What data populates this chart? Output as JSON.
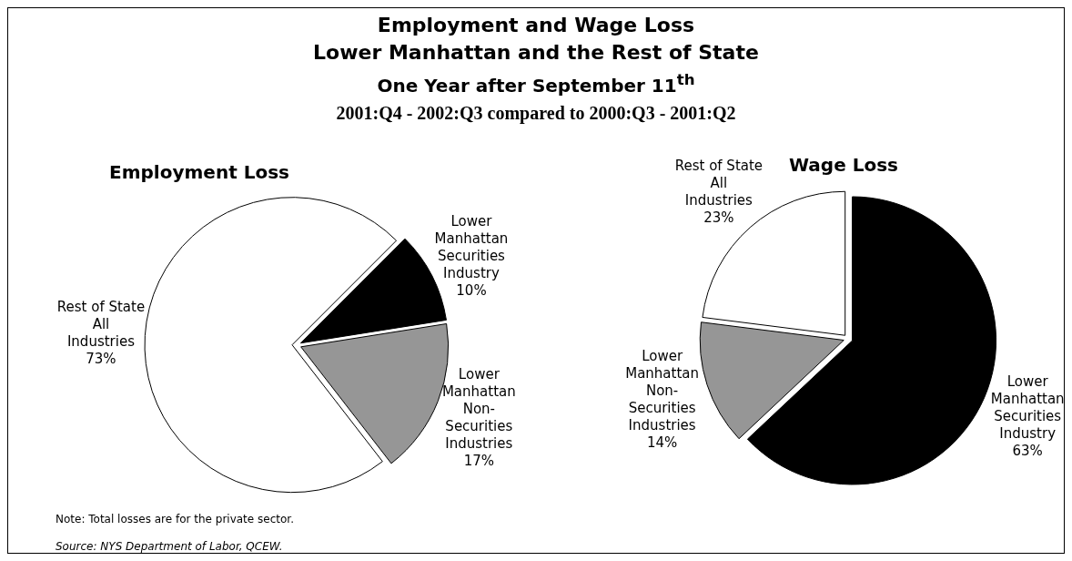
{
  "chart_data": [
    {
      "type": "other",
      "title": "Employment and Wage Loss",
      "subtitle": "Lower Manhattan and the Rest of State\nOne Year after September 11$^{th}$\n2001:Q4 - 2002:Q3 compared to 2000:Q3 - 2001:Q2",
      "annotations": [
        "Note: Total losses are for the private sector.",
        "Source: NYS Department of Labor, QCEW."
      ]
    },
    {
      "type": "pie",
      "title": "Employment Loss",
      "categories": [
        "Lower\nManhattan\nSecurities\nIndustry",
        "Lower\nManhattan\nNon-\nSecurities\nIndustries",
        "Rest of State\nAll\nIndustries"
      ],
      "values": [
        10,
        17,
        73
      ],
      "colors": [
        "#000000",
        "#969696",
        "#ffffff"
      ],
      "value_labels": [
        "10%",
        "17%",
        "73%"
      ]
    },
    {
      "type": "pie",
      "title": "Wage Loss",
      "categories": [
        "Lower\nManhattan\nSecurities\nIndustry",
        "Lower\nManhattan\nNon-\nSecurities\nIndustries",
        "Rest of State\nAll\nIndustries"
      ],
      "values": [
        63,
        14,
        23
      ],
      "colors": [
        "#000000",
        "#969696",
        "#ffffff"
      ],
      "value_labels": [
        "63%",
        "14%",
        "23%"
      ]
    }
  ]
}
